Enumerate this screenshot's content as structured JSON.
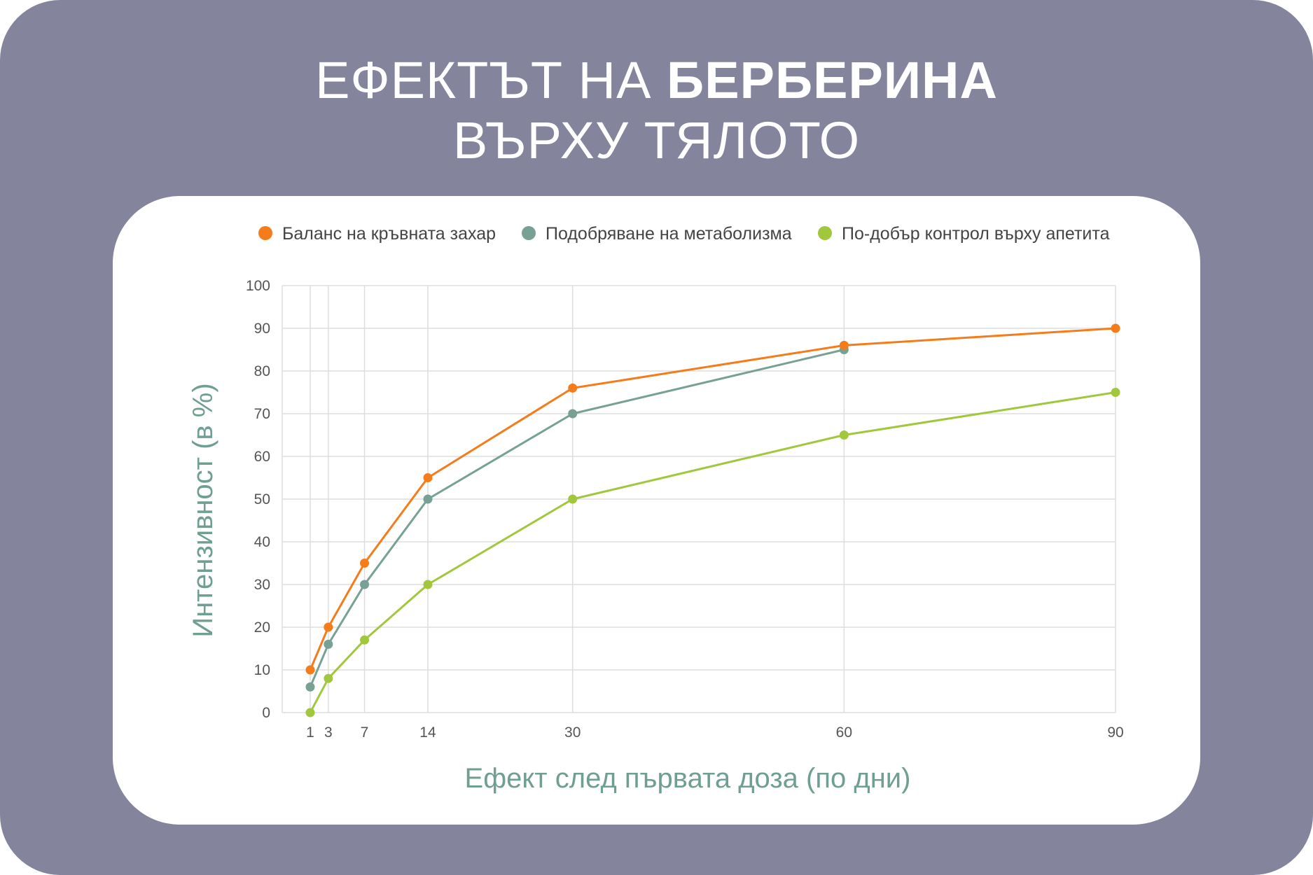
{
  "header": {
    "title_part1": "ЕФЕКТЪТ НА ",
    "title_bold": "БЕРБЕРИНА",
    "title_line2": "ВЪРХУ ТЯЛОТО"
  },
  "chart_data": {
    "type": "line",
    "title": "ЕФЕКТЪТ НА БЕРБЕРИНА ВЪРХУ ТЯЛОТО",
    "xlabel": "Ефект след първата доза (по дни)",
    "ylabel": "Интензивност (в %)",
    "x": [
      1,
      3,
      7,
      14,
      30,
      60,
      90
    ],
    "x_ticks": [
      "1",
      "3",
      "7",
      "14",
      "30",
      "60",
      "90"
    ],
    "y_ticks": [
      "0",
      "10",
      "20",
      "30",
      "40",
      "50",
      "60",
      "70",
      "80",
      "90",
      "100"
    ],
    "ylim": [
      0,
      100
    ],
    "grid": true,
    "legend_position": "top",
    "series": [
      {
        "name": "Баланс на кръвната захар",
        "color": "#f47c1a",
        "points": [
          [
            1,
            10
          ],
          [
            3,
            20
          ],
          [
            7,
            35
          ],
          [
            14,
            55
          ],
          [
            30,
            76
          ],
          [
            60,
            86
          ],
          [
            90,
            90
          ]
        ]
      },
      {
        "name": "Подобряване на метаболизма",
        "color": "#76a194",
        "points": [
          [
            1,
            6
          ],
          [
            3,
            16
          ],
          [
            7,
            30
          ],
          [
            14,
            50
          ],
          [
            30,
            70
          ],
          [
            60,
            85
          ]
        ]
      },
      {
        "name": "По-добър контрол върху апетита",
        "color": "#a1c83c",
        "points": [
          [
            1,
            0
          ],
          [
            3,
            8
          ],
          [
            7,
            17
          ],
          [
            14,
            30
          ],
          [
            30,
            50
          ],
          [
            60,
            65
          ],
          [
            90,
            75
          ]
        ]
      }
    ]
  }
}
